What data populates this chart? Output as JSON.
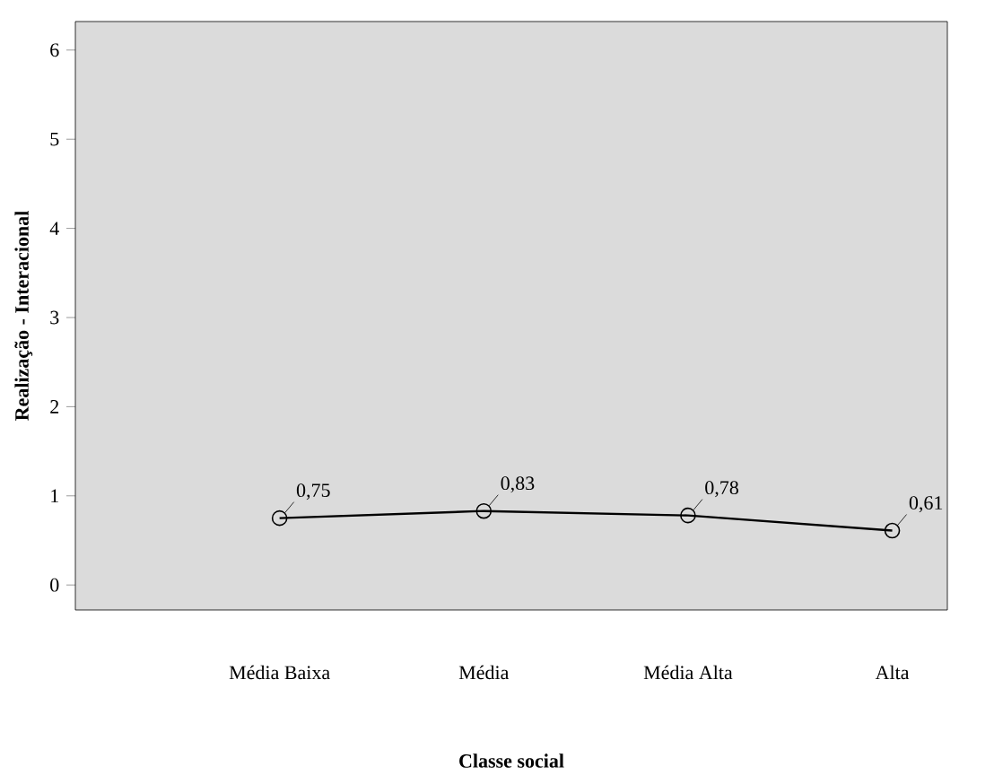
{
  "chart_data": {
    "type": "line",
    "xlabel": "Classe social",
    "ylabel": "Realização - Interacional",
    "categories": [
      "Média Baixa",
      "Média",
      "Média Alta",
      "Alta"
    ],
    "values": [
      0.75,
      0.83,
      0.78,
      0.61
    ],
    "value_labels": [
      "0,75",
      "0,83",
      "0,78",
      "0,61"
    ],
    "color": "#000000",
    "marker": "circle",
    "line_style": "solid",
    "ylim": [
      -0.28,
      6.32
    ],
    "yticks": [
      0,
      1,
      2,
      3,
      4,
      5,
      6
    ]
  }
}
